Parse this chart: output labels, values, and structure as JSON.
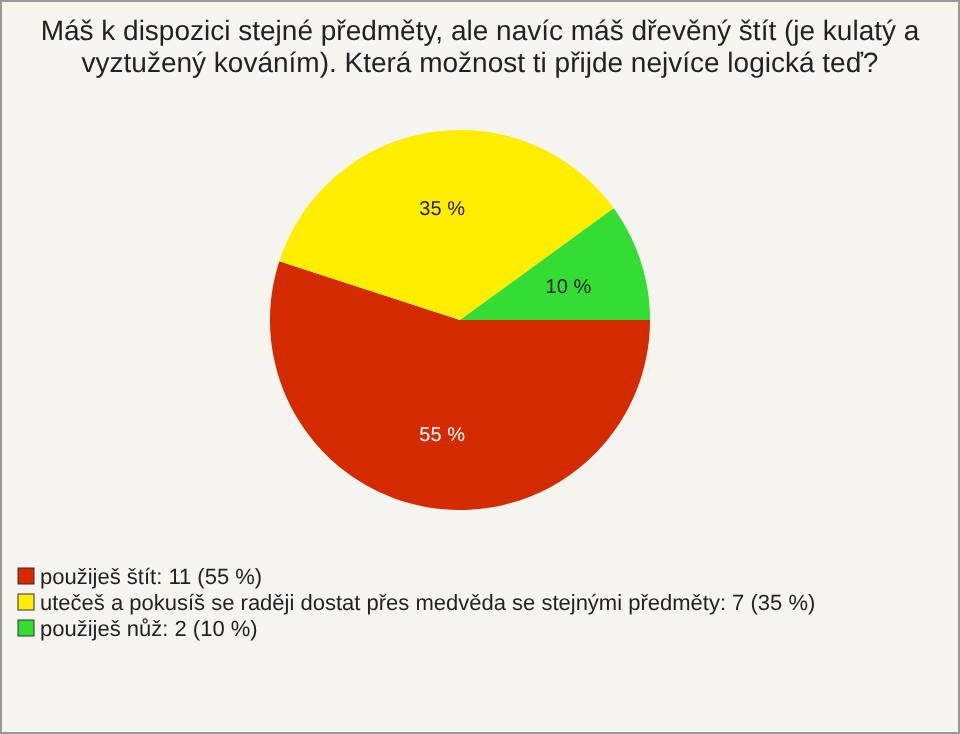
{
  "chart_data": {
    "type": "pie",
    "title": "Máš k dispozici stejné předměty, ale navíc máš dřevěný štít (je kulatý a vyztužený kováním). Která možnost ti přijde nejvíce logická teď?",
    "categories": [
      "použiješ štít: 11 (55 %)",
      "utečeš a pokusíš se raději dostat přes medvěda se stejnými předměty: 7 (35 %)",
      "použiješ nůž: 2 (10 %)"
    ],
    "values": [
      55,
      35,
      10
    ],
    "value_labels": [
      "55 %",
      "35 %",
      "10 %"
    ],
    "colors": [
      "#d42a00",
      "#ffee00",
      "#33dd33"
    ],
    "legend": "bottom"
  }
}
